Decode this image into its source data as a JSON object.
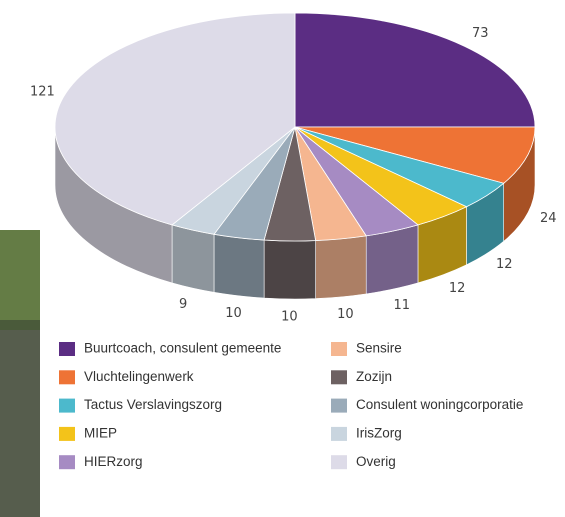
{
  "chart_data": {
    "type": "pie",
    "labels": [
      "Buurtcoach, consulent gemeente",
      "Vluchtelingenwerk",
      "Tactus Verslavingszorg",
      "MIEP",
      "HIERzorg",
      "Sensire",
      "Zozijn",
      "Consulent woningcorporatie",
      "IrisZorg",
      "Overig"
    ],
    "values": [
      73,
      24,
      12,
      12,
      11,
      10,
      10,
      10,
      9,
      121
    ],
    "colors": [
      "#5b2d83",
      "#ee7335",
      "#4cb9cc",
      "#f3c31a",
      "#a68bc3",
      "#f5b690",
      "#6d6162",
      "#9aabb9",
      "#c9d5df",
      "#dddbe8"
    ],
    "legend": "bottom"
  }
}
